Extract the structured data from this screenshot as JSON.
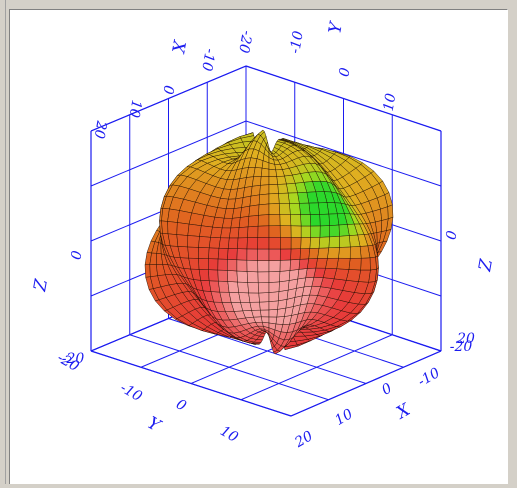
{
  "chart_data": {
    "type": "surface3d",
    "title": "",
    "axes": {
      "x": {
        "label": "X",
        "ticks": [
          "-20",
          "-10",
          "0",
          "10",
          "20"
        ],
        "range": [
          -20,
          20
        ]
      },
      "y": {
        "label": "Y",
        "ticks": [
          "-20",
          "-10",
          "0",
          "10",
          "20"
        ],
        "range": [
          -20,
          20
        ]
      },
      "z": {
        "label": "Z",
        "ticks": [
          "-20",
          "0",
          "20"
        ],
        "range": [
          -20,
          20
        ]
      }
    },
    "surface": {
      "shape": "closed bumpy spherical surface centered near origin",
      "approx_radius": 15,
      "colormap": [
        "#2bd82b",
        "#a8d820",
        "#e0b020",
        "#e06020",
        "#e83a3a",
        "#f4a0a0"
      ]
    },
    "grid": true,
    "axis_color": "#1c1cf0"
  }
}
